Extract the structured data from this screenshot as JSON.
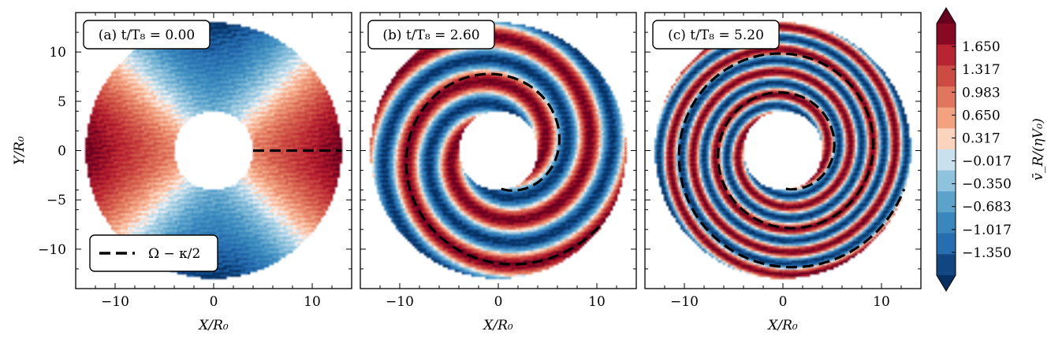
{
  "chart_data": {
    "type": "heatmap",
    "figure_description_colorbar": "RdBu_r diverging",
    "colors": {
      "negative_extreme": "#053061",
      "negative": "#2166ac",
      "mid_negative": "#92c5de",
      "zero": "#f7f7f7",
      "mid_positive": "#f4a582",
      "positive": "#b2182b",
      "positive_extreme": "#67001f",
      "guide_line": "#000000"
    },
    "xlim": [
      -14,
      14
    ],
    "ylim": [
      -14,
      14
    ],
    "x_ticks": [
      -10,
      0,
      10
    ],
    "y_ticks": [
      10,
      5,
      0,
      -5,
      -10
    ],
    "x_tick_labels": [
      "−10",
      "0",
      "10"
    ],
    "y_tick_labels": [
      "10",
      "5",
      "0",
      "−5",
      "−10"
    ],
    "xlabel": "X/R₀",
    "ylabel": "Y/R₀",
    "disk": {
      "inner_radius": 4,
      "outer_radius": 13
    },
    "panels": [
      {
        "label": "(a) t/T₈ = 0.00",
        "time": 0.0,
        "pattern": "m2-sectors",
        "guide_line": {
          "type": "radial",
          "from_r": 4,
          "to_r": 13,
          "angle_deg": 0
        },
        "legend": {
          "label": "Ω − κ/2",
          "location": "lower-left"
        }
      },
      {
        "label": "(b) t/T₈ = 2.60",
        "time": 2.6,
        "pattern": "winding-spiral",
        "guide_line": {
          "type": "spiral",
          "description": "trailing spiral from r≈4 to r≈13"
        }
      },
      {
        "label": "(c) t/T₈ = 5.20",
        "time": 5.2,
        "pattern": "tightly-wound-spiral",
        "guide_line": {
          "type": "spiral",
          "description": "tightly wound trailing spiral from r≈4 to r≈13"
        }
      }
    ],
    "colorbar": {
      "label": "v̄_R/(ηV₀)",
      "min": -1.683,
      "max": 1.983,
      "tick_values": [
        1.65,
        1.317,
        0.983,
        0.65,
        0.317,
        -0.017,
        -0.35,
        -0.683,
        -1.017,
        -1.35
      ],
      "tick_labels": [
        "1.650",
        "1.317",
        "0.983",
        "0.650",
        "0.317",
        "−0.017",
        "−0.350",
        "−0.683",
        "−1.017",
        "−1.350"
      ],
      "extend": "both"
    }
  }
}
